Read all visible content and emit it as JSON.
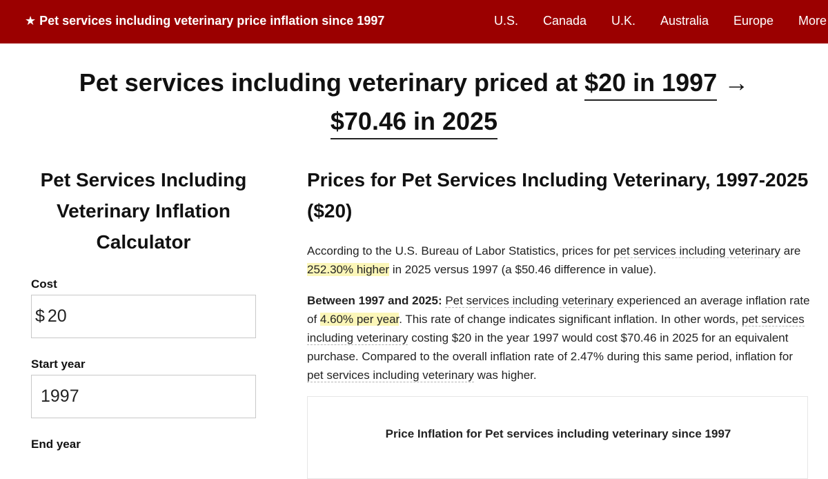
{
  "header": {
    "brand": "★ Pet services including veterinary price inflation since 1997",
    "nav": [
      "U.S.",
      "Canada",
      "U.K.",
      "Australia",
      "Europe",
      "More"
    ],
    "background_color": "#9b0000"
  },
  "hero": {
    "prefix": "Pet services including veterinary priced at",
    "start_value": "$20 in 1997",
    "arrow": "→",
    "end_value": "$70.46 in 2025"
  },
  "calculator": {
    "title": "Pet Services Including Veterinary Inflation Calculator",
    "cost_label": "Cost",
    "cost_prefix": "$",
    "cost_value": "20",
    "start_year_label": "Start year",
    "start_year_value": "1997",
    "end_year_label": "End year"
  },
  "article": {
    "title": "Prices for Pet Services Including Veterinary, 1997-2025 ($20)",
    "p1": {
      "t1": "According to the U.S. Bureau of Labor Statistics, prices for ",
      "link1": "pet services including veterinary",
      "t2": " are ",
      "highlight": "252.30% higher",
      "t3": " in 2025 versus 1997 (a $50.46 difference in value)."
    },
    "p2": {
      "lead": "Between 1997 and 2025:",
      "link1": "Pet services including veterinary",
      "t1": " experienced an average inflation rate of ",
      "highlight": "4.60% per year",
      "t2": ". This rate of change indicates significant inflation. In other words, ",
      "link2": "pet services including veterinary",
      "t3": " costing $20 in the year 1997 would cost $70.46 in 2025 for an equivalent purchase. Compared to the overall inflation rate of 2.47% during this same period, inflation for ",
      "link3": "pet services including veterinary",
      "t4": " was higher."
    },
    "chart_title": "Price Inflation for Pet services including veterinary since 1997"
  }
}
